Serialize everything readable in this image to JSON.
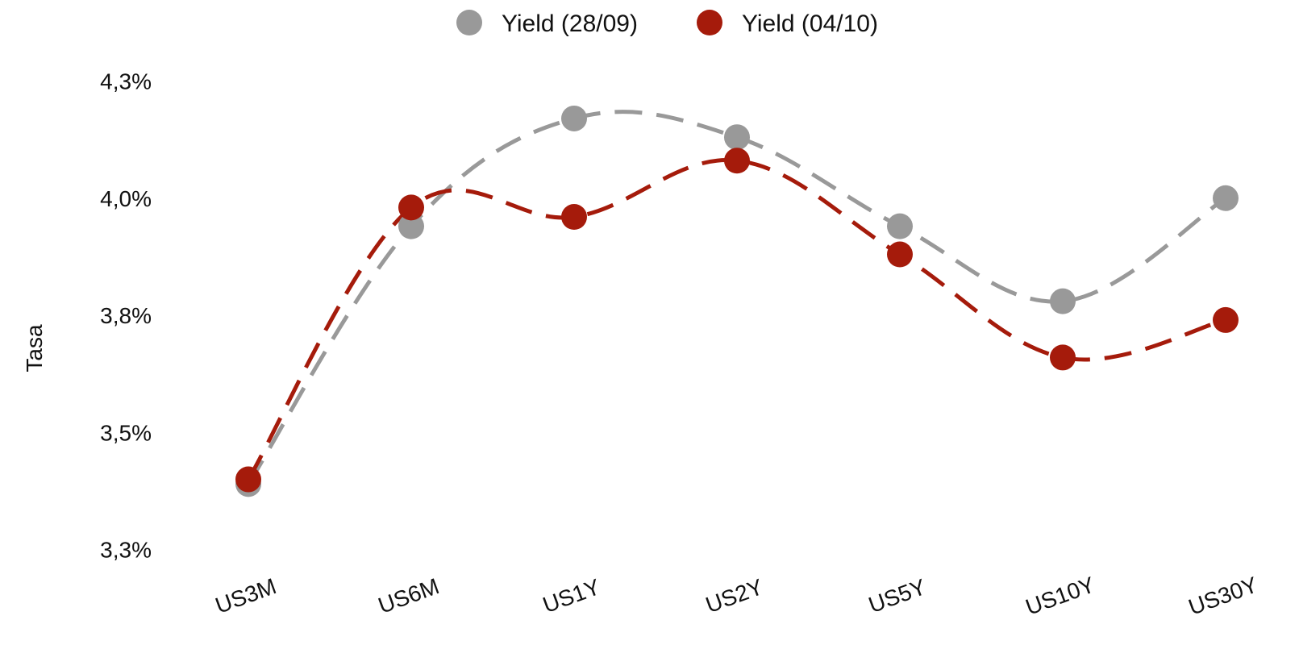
{
  "chart_data": {
    "type": "line",
    "title": "",
    "xlabel": "",
    "ylabel": "Tasa",
    "categories": [
      "US3M",
      "US6M",
      "US1Y",
      "US2Y",
      "US5Y",
      "US10Y",
      "US30Y"
    ],
    "y_ticks": [
      3.25,
      3.5,
      3.75,
      4.0,
      4.25
    ],
    "y_tick_labels": [
      "3,3%",
      "3,5%",
      "3,8%",
      "4,0%",
      "4,3%"
    ],
    "ylim": [
      3.21,
      4.28
    ],
    "grid": false,
    "legend_position": "top-center",
    "line_style": "dashed-smooth",
    "series": [
      {
        "name": "Yield (28/09)",
        "color": "#999999",
        "values": [
          3.39,
          3.94,
          4.17,
          4.13,
          3.94,
          3.78,
          4.0
        ]
      },
      {
        "name": "Yield (04/10)",
        "color": "#a51b0b",
        "values": [
          3.4,
          3.98,
          3.96,
          4.08,
          3.88,
          3.66,
          3.74
        ]
      }
    ]
  }
}
